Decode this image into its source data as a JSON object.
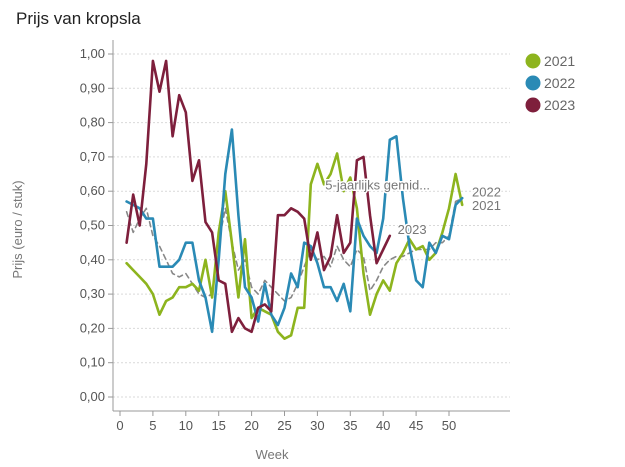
{
  "chart_data": {
    "type": "line",
    "title": "Prijs van kropsla",
    "xlabel": "Week",
    "ylabel": "Prijs (euro / stuk)",
    "xlim": [
      -1,
      59
    ],
    "ylim": [
      -0.04,
      1.04
    ],
    "grid": true,
    "legend_position": "right",
    "x_ticks": [
      0,
      5,
      10,
      15,
      20,
      25,
      30,
      35,
      40,
      45,
      50
    ],
    "x_tick_labels": [
      "0",
      "5",
      "10",
      "15",
      "20",
      "25",
      "30",
      "35",
      "40",
      "45",
      "50"
    ],
    "y_ticks": [
      0,
      0.1,
      0.2,
      0.3,
      0.4,
      0.5,
      0.6,
      0.7,
      0.8,
      0.9,
      1.0
    ],
    "y_tick_labels": [
      "0,00",
      "0,10",
      "0,20",
      "0,30",
      "0,40",
      "0,50",
      "0,60",
      "0,70",
      "0,80",
      "0,90",
      "1,00"
    ],
    "series": [
      {
        "name": "5-jaarlijks gemiddelde",
        "label": "5-jaarlijks gemid...",
        "color": "#888888",
        "dashed": true,
        "x": [
          1,
          2,
          3,
          4,
          5,
          6,
          7,
          8,
          9,
          10,
          11,
          12,
          13,
          14,
          15,
          16,
          17,
          18,
          19,
          20,
          21,
          22,
          23,
          24,
          25,
          26,
          27,
          28,
          29,
          30,
          31,
          32,
          33,
          34,
          35,
          36,
          37,
          38,
          39,
          40,
          41,
          42,
          43,
          44,
          45,
          46,
          47,
          48,
          49,
          50,
          51,
          52
        ],
        "values": [
          0.54,
          0.48,
          0.52,
          0.55,
          0.47,
          0.44,
          0.4,
          0.36,
          0.35,
          0.36,
          0.33,
          0.3,
          0.29,
          0.3,
          0.45,
          0.55,
          0.45,
          0.37,
          0.4,
          0.32,
          0.3,
          0.34,
          0.32,
          0.3,
          0.28,
          0.29,
          0.33,
          0.38,
          0.43,
          0.4,
          0.41,
          0.38,
          0.44,
          0.4,
          0.38,
          0.43,
          0.41,
          0.31,
          0.34,
          0.38,
          0.4,
          0.41,
          0.41,
          0.42,
          0.43,
          0.43,
          0.43,
          0.45,
          0.45,
          0.47,
          0.57,
          0.58
        ]
      },
      {
        "name": "2021",
        "label": "2021",
        "color": "#8db41e",
        "dashed": false,
        "x": [
          1,
          2,
          3,
          4,
          5,
          6,
          7,
          8,
          9,
          10,
          11,
          12,
          13,
          14,
          15,
          16,
          17,
          18,
          19,
          20,
          21,
          22,
          23,
          24,
          25,
          26,
          27,
          28,
          29,
          30,
          31,
          32,
          33,
          34,
          35,
          36,
          37,
          38,
          39,
          40,
          41,
          42,
          43,
          44,
          45,
          46,
          47,
          48,
          49,
          50,
          51,
          52
        ],
        "values": [
          0.39,
          0.37,
          0.35,
          0.33,
          0.3,
          0.24,
          0.28,
          0.29,
          0.32,
          0.32,
          0.33,
          0.31,
          0.4,
          0.29,
          0.48,
          0.6,
          0.45,
          0.29,
          0.46,
          0.23,
          0.26,
          0.25,
          0.24,
          0.19,
          0.17,
          0.18,
          0.26,
          0.26,
          0.62,
          0.68,
          0.62,
          0.65,
          0.71,
          0.6,
          0.64,
          0.55,
          0.36,
          0.24,
          0.3,
          0.34,
          0.31,
          0.39,
          0.42,
          0.46,
          0.43,
          0.44,
          0.4,
          0.42,
          0.48,
          0.55,
          0.65,
          0.56
        ]
      },
      {
        "name": "2022",
        "label": "2022",
        "color": "#2a8ab5",
        "dashed": false,
        "x": [
          1,
          2,
          3,
          4,
          5,
          6,
          7,
          8,
          9,
          10,
          11,
          12,
          13,
          14,
          15,
          16,
          17,
          18,
          19,
          20,
          21,
          22,
          23,
          24,
          25,
          26,
          27,
          28,
          29,
          30,
          31,
          32,
          33,
          34,
          35,
          36,
          37,
          38,
          39,
          40,
          41,
          42,
          43,
          44,
          45,
          46,
          47,
          48,
          49,
          50,
          51,
          52
        ],
        "values": [
          0.57,
          0.56,
          0.55,
          0.52,
          0.52,
          0.38,
          0.38,
          0.38,
          0.4,
          0.45,
          0.45,
          0.34,
          0.29,
          0.19,
          0.4,
          0.65,
          0.78,
          0.53,
          0.32,
          0.29,
          0.22,
          0.33,
          0.24,
          0.21,
          0.26,
          0.36,
          0.32,
          0.45,
          0.44,
          0.39,
          0.32,
          0.32,
          0.28,
          0.33,
          0.25,
          0.52,
          0.47,
          0.44,
          0.42,
          0.52,
          0.75,
          0.76,
          0.58,
          0.44,
          0.34,
          0.32,
          0.45,
          0.42,
          0.47,
          0.46,
          0.56,
          0.58
        ]
      },
      {
        "name": "2023",
        "label": "2023",
        "color": "#7e1f3c",
        "dashed": false,
        "x": [
          1,
          2,
          3,
          4,
          5,
          6,
          7,
          8,
          9,
          10,
          11,
          12,
          13,
          14,
          15,
          16,
          17,
          18,
          19,
          20,
          21,
          22,
          23,
          24,
          25,
          26,
          27,
          28,
          29,
          30,
          31,
          32,
          33,
          34,
          35,
          36,
          37,
          38,
          39,
          40,
          41
        ],
        "values": [
          0.45,
          0.59,
          0.5,
          0.68,
          0.98,
          0.89,
          0.98,
          0.76,
          0.88,
          0.83,
          0.63,
          0.69,
          0.51,
          0.48,
          0.34,
          0.33,
          0.19,
          0.23,
          0.2,
          0.19,
          0.26,
          0.27,
          0.25,
          0.53,
          0.53,
          0.55,
          0.54,
          0.52,
          0.4,
          0.48,
          0.37,
          0.41,
          0.53,
          0.42,
          0.45,
          0.69,
          0.7,
          0.53,
          0.39,
          0.43,
          0.47
        ]
      }
    ],
    "legend": [
      {
        "label": "2021",
        "color": "#8db41e"
      },
      {
        "label": "2022",
        "color": "#2a8ab5"
      },
      {
        "label": "2023",
        "color": "#7e1f3c"
      }
    ]
  }
}
